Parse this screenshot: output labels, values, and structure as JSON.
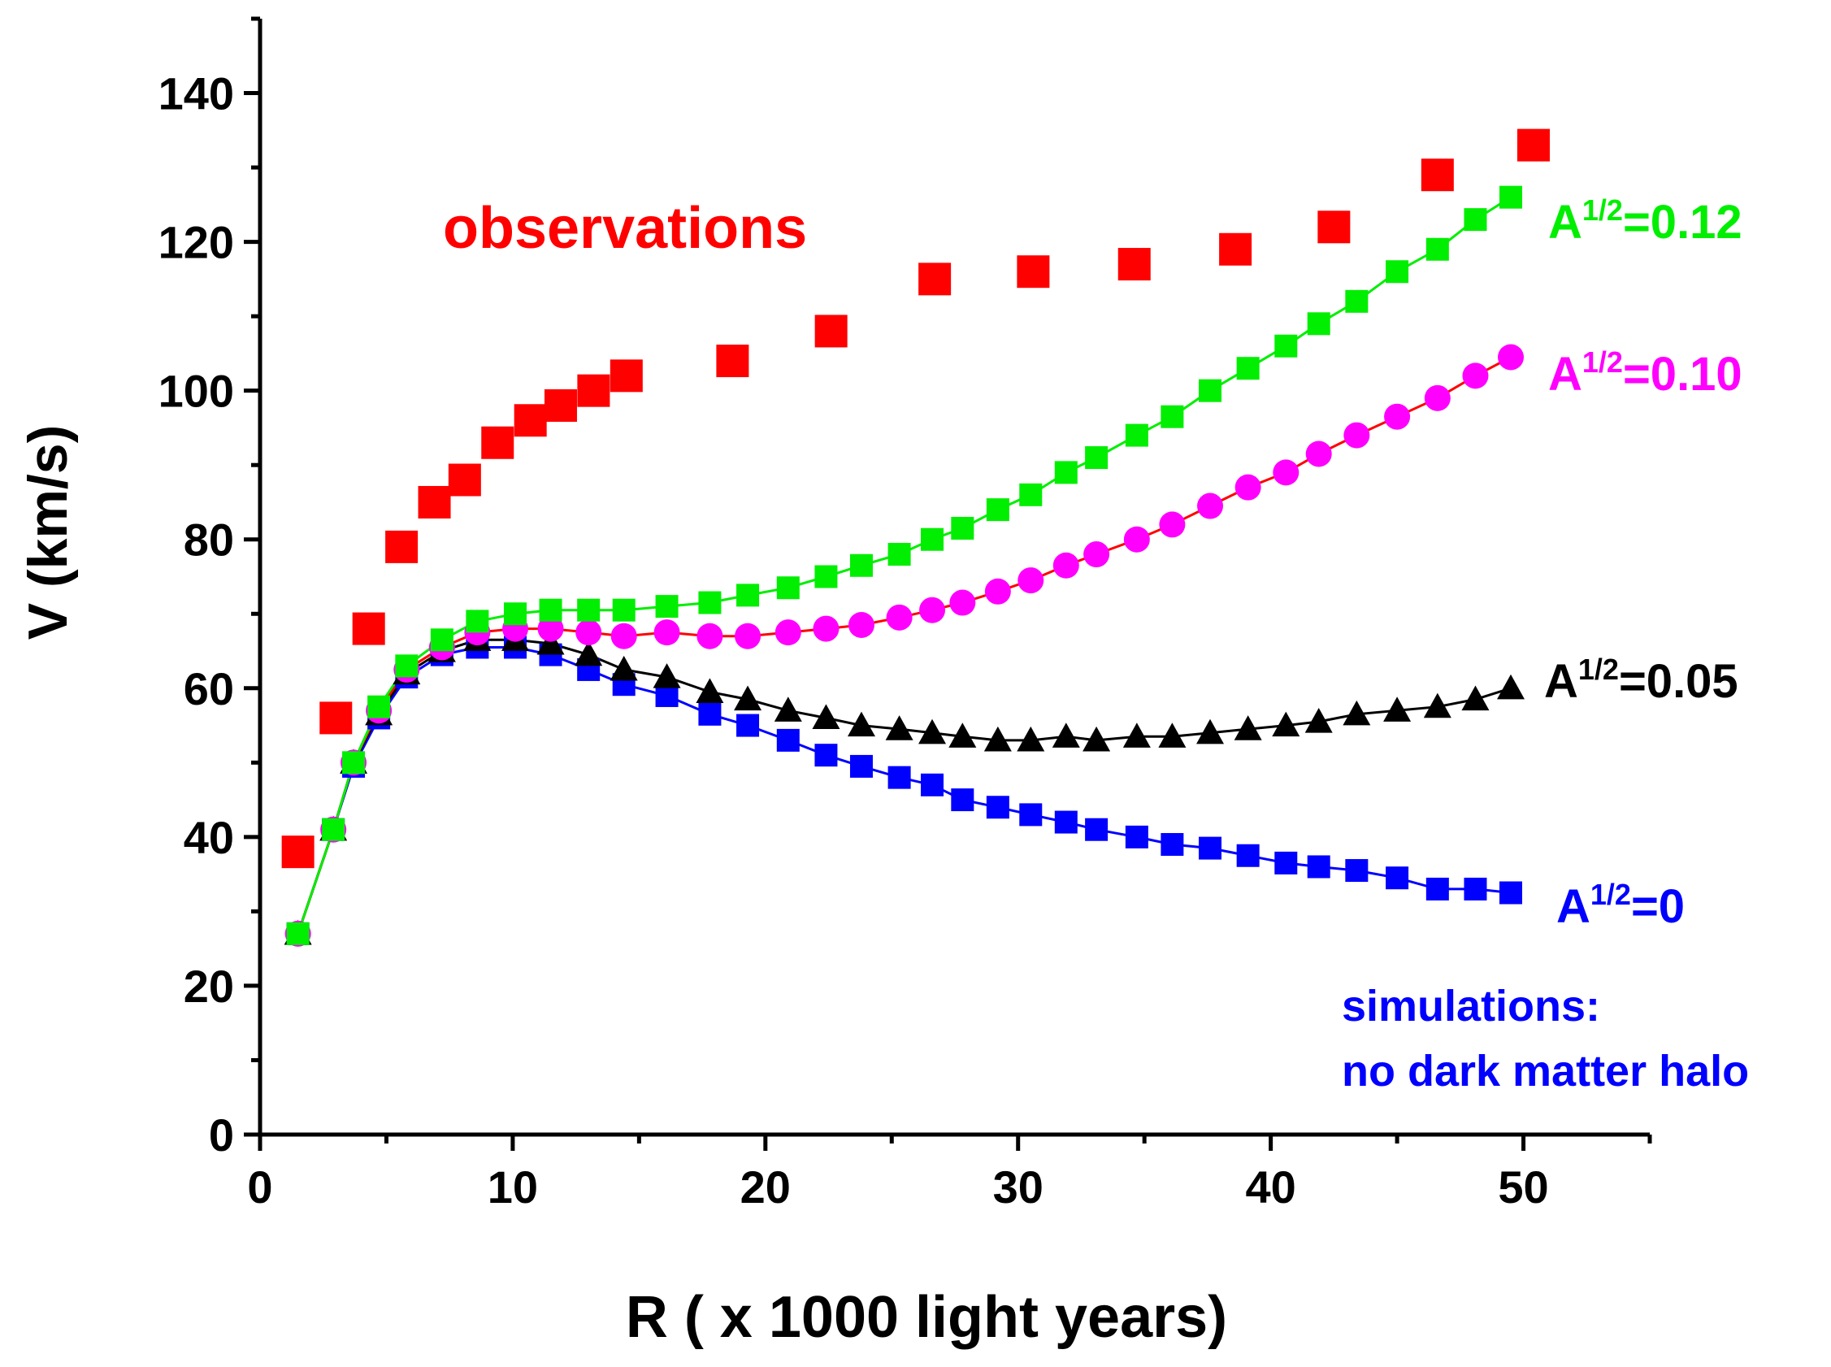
{
  "chart_data": {
    "type": "scatter",
    "xlabel": "R ( x 1000 light years)",
    "ylabel": "V (km/s)",
    "xlim": [
      0,
      55
    ],
    "ylim": [
      0,
      150
    ],
    "xticks": [
      0,
      10,
      20,
      30,
      40,
      50
    ],
    "yticks": [
      0,
      20,
      40,
      60,
      80,
      100,
      120,
      140
    ],
    "grid": false,
    "series": [
      {
        "name": "observations",
        "label": "observations",
        "color": "#ff0000",
        "marker": "square",
        "line": false,
        "x": [
          1.5,
          3.0,
          4.3,
          5.6,
          6.9,
          8.1,
          9.4,
          10.7,
          11.9,
          13.2,
          14.5,
          18.7,
          22.6,
          26.7,
          30.6,
          34.6,
          38.6,
          42.5,
          46.6,
          50.4
        ],
        "y": [
          38,
          56,
          68,
          79,
          85,
          88,
          93,
          96,
          98,
          100,
          102,
          104,
          108,
          115,
          116,
          117,
          119,
          122,
          129,
          133
        ]
      },
      {
        "name": "A^1/2=0.12",
        "label_main": "A",
        "label_sup": "1/2",
        "label_rest": "=0.12",
        "color": "#00ee00",
        "marker": "square",
        "line": true,
        "x": [
          1.5,
          2.9,
          3.7,
          4.7,
          5.8,
          7.2,
          8.6,
          10.1,
          11.5,
          13.0,
          14.4,
          16.1,
          17.8,
          19.3,
          20.9,
          22.4,
          23.8,
          25.3,
          26.6,
          27.8,
          29.2,
          30.5,
          31.9,
          33.1,
          34.7,
          36.1,
          37.6,
          39.1,
          40.6,
          41.9,
          43.4,
          45.0,
          46.6,
          48.1,
          49.5
        ],
        "y": [
          27,
          41,
          50,
          57.5,
          63,
          66.5,
          69,
          70,
          70.5,
          70.5,
          70.5,
          71,
          71.5,
          72.5,
          73.5,
          75,
          76.5,
          78,
          80,
          81.5,
          84,
          86,
          89,
          91,
          94,
          96.5,
          100,
          103,
          106,
          109,
          112,
          116,
          119,
          123,
          126
        ]
      },
      {
        "name": "A^1/2=0.10",
        "label_main": "A",
        "label_sup": "1/2",
        "label_rest": "=0.10",
        "color": "#ff00ff",
        "line_color": "#ff0000",
        "marker": "circle",
        "line": true,
        "x": [
          1.5,
          2.9,
          3.7,
          4.7,
          5.8,
          7.2,
          8.6,
          10.1,
          11.5,
          13.0,
          14.4,
          16.1,
          17.8,
          19.3,
          20.9,
          22.4,
          23.8,
          25.3,
          26.6,
          27.8,
          29.2,
          30.5,
          31.9,
          33.1,
          34.7,
          36.1,
          37.6,
          39.1,
          40.6,
          41.9,
          43.4,
          45.0,
          46.6,
          48.1,
          49.5
        ],
        "y": [
          27,
          41,
          50,
          57,
          62.5,
          65.5,
          67.5,
          68,
          68,
          67.5,
          67,
          67.5,
          67,
          67,
          67.5,
          68,
          68.5,
          69.5,
          70.5,
          71.5,
          73,
          74.5,
          76.5,
          78,
          80,
          82,
          84.5,
          87,
          89,
          91.5,
          94,
          96.5,
          99,
          102,
          104.5
        ]
      },
      {
        "name": "A^1/2=0.05",
        "label_main": "A",
        "label_sup": "1/2",
        "label_rest": "=0.05",
        "color": "#000000",
        "marker": "triangle",
        "line": true,
        "x": [
          1.5,
          2.9,
          3.7,
          4.7,
          5.8,
          7.2,
          8.6,
          10.1,
          11.5,
          13.0,
          14.4,
          16.1,
          17.8,
          19.3,
          20.9,
          22.4,
          23.8,
          25.3,
          26.6,
          27.8,
          29.2,
          30.5,
          31.9,
          33.1,
          34.7,
          36.1,
          37.6,
          39.1,
          40.6,
          41.9,
          43.4,
          45.0,
          46.6,
          48.1,
          49.5
        ],
        "y": [
          27,
          41,
          50,
          56.5,
          62,
          65,
          66.5,
          66.5,
          66,
          64.5,
          62.5,
          61.5,
          59.5,
          58.5,
          57,
          56,
          55,
          54.5,
          54,
          53.5,
          53,
          53,
          53.5,
          53,
          53.5,
          53.5,
          54,
          54.5,
          55,
          55.5,
          56.5,
          57,
          57.5,
          58.5,
          60
        ]
      },
      {
        "name": "A^1/2=0",
        "label_main": "A",
        "label_sup": "1/2",
        "label_rest": "=0",
        "color": "#0000ff",
        "marker": "square",
        "line": true,
        "x": [
          1.5,
          2.9,
          3.7,
          4.7,
          5.8,
          7.2,
          8.6,
          10.1,
          11.5,
          13.0,
          14.4,
          16.1,
          17.8,
          19.3,
          20.9,
          22.4,
          23.8,
          25.3,
          26.6,
          27.8,
          29.2,
          30.5,
          31.9,
          33.1,
          34.7,
          36.1,
          37.6,
          39.1,
          40.6,
          41.9,
          43.4,
          45.0,
          46.6,
          48.1,
          49.5
        ],
        "y": [
          27,
          41,
          49.5,
          56,
          61.5,
          64.5,
          65.5,
          65.5,
          64.5,
          62.5,
          60.5,
          59,
          56.5,
          55,
          53,
          51,
          49.5,
          48,
          47,
          45,
          44,
          43,
          42,
          41,
          40,
          39,
          38.5,
          37.5,
          36.5,
          36,
          35.5,
          34.5,
          33,
          33,
          32.5
        ]
      }
    ],
    "annotations": {
      "simulations_line1": "simulations:",
      "simulations_line2": "no dark matter halo"
    }
  }
}
